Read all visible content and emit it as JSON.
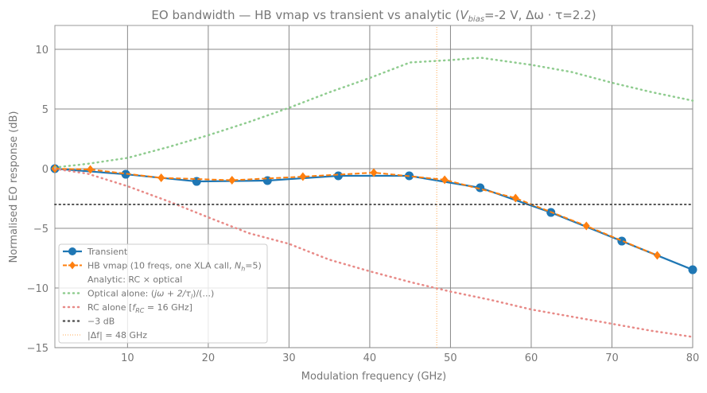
{
  "chart_data": {
    "type": "line",
    "title": "EO bandwidth — HB vmap vs transient vs analytic",
    "title_suffix": {
      "open": "(",
      "v": "V",
      "v_sub": "bias",
      "v_val": "=-2 V, Δω · τ=2.2)"
    },
    "xlabel": "Modulation frequency (GHz)",
    "ylabel": "Normalised EO response (dB)",
    "xlim": [
      1,
      80
    ],
    "ylim": [
      -15,
      12
    ],
    "xticks": [
      10,
      20,
      30,
      40,
      50,
      60,
      70,
      80
    ],
    "yticks": [
      10,
      5,
      0,
      -5,
      -10,
      -15
    ],
    "ytick_labels": [
      "10",
      "5",
      "0",
      "−5",
      "−10",
      "−15"
    ],
    "grid": true,
    "legend_position": "lower-left",
    "series": [
      {
        "name": "Transient",
        "color": "#1f77b4",
        "style": "solid-circle",
        "x": [
          1,
          9.78,
          18.56,
          27.33,
          36.11,
          44.89,
          53.67,
          62.44,
          71.22,
          80
        ],
        "y": [
          0,
          -0.47,
          -1.07,
          -1.0,
          -0.6,
          -0.6,
          -1.6,
          -3.67,
          -6.07,
          -8.47
        ]
      },
      {
        "name": "HB vmap (10 freqs, one XLA call, N_h=5)",
        "color": "#ff7f0e",
        "style": "dashed-diamond",
        "x": [
          1,
          5.39,
          14.17,
          22.94,
          31.72,
          40.5,
          49.28,
          58.06,
          66.83,
          75.61
        ],
        "y": [
          0,
          -0.07,
          -0.77,
          -0.97,
          -0.67,
          -0.33,
          -0.93,
          -2.47,
          -4.8,
          -7.27
        ]
      },
      {
        "name": "Analytic: RC × optical",
        "color": "none",
        "style": "none",
        "x": [],
        "y": []
      },
      {
        "name": "Optical alone: (jω + 2/τ_l)/(...)",
        "color": "#8fcc8f",
        "style": "dotted",
        "x": [
          1,
          5,
          10,
          15,
          20,
          25,
          30,
          35,
          40,
          45,
          50,
          53.7,
          60,
          65,
          70,
          75,
          80
        ],
        "y": [
          0.1,
          0.4,
          0.9,
          1.8,
          2.8,
          3.9,
          5.1,
          6.4,
          7.6,
          8.9,
          9.1,
          9.3,
          8.7,
          8.1,
          7.2,
          6.4,
          5.7
        ]
      },
      {
        "name": "RC alone  [f_RC = 16 GHz]",
        "color": "#e88a87",
        "style": "dotted",
        "x": [
          1,
          5,
          10,
          15,
          20,
          25,
          30,
          35,
          40,
          45,
          50,
          55,
          60,
          65,
          70,
          75,
          80
        ],
        "y": [
          -0.02,
          -0.41,
          -1.47,
          -2.72,
          -4.08,
          -5.4,
          -6.3,
          -7.63,
          -8.6,
          -9.5,
          -10.3,
          -11.0,
          -11.8,
          -12.4,
          -13.0,
          -13.6,
          -14.1
        ]
      },
      {
        "name": "−3 dB",
        "color": "#555555",
        "style": "dotted",
        "x": [
          1,
          80
        ],
        "y": [
          -3,
          -3
        ]
      },
      {
        "name": "|Δf| = 48 GHz",
        "color": "#ffaa55",
        "style": "vline-dotted",
        "x": [
          48.3,
          48.3
        ],
        "y": [
          -15,
          12
        ]
      }
    ],
    "legend": [
      {
        "pre": "Transient"
      },
      {
        "pre": "HB vmap (10 freqs, one XLA call, ",
        "it": "N",
        "sub": "h",
        "post": "=5)"
      },
      {
        "pre": "Analytic: RC × optical"
      },
      {
        "pre": "Optical alone: (",
        "it": "jω + 2/τ",
        "sub": "l",
        "post": ")/(...)"
      },
      {
        "pre": "RC alone  [",
        "it": "f",
        "sub": "RC",
        "post": " = 16 GHz]"
      },
      {
        "pre": "−3 dB"
      },
      {
        "pre": "|Δf| = 48 GHz"
      }
    ]
  }
}
